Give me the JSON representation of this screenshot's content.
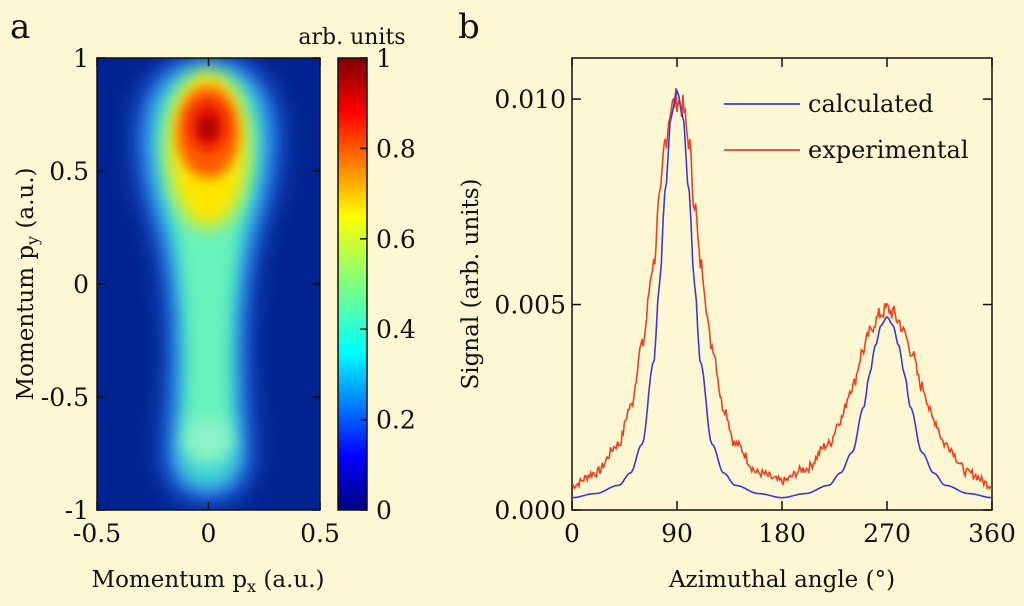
{
  "chart_data": [
    {
      "panel": "a",
      "type": "heatmap",
      "xlabel_main": "Momentum p",
      "xlabel_sub": "x",
      "xlabel_unit": " (a.u.)",
      "ylabel_main": "Momentum p",
      "ylabel_sub": "y",
      "ylabel_unit": " (a.u.)",
      "xlim": [
        -0.5,
        0.5
      ],
      "ylim": [
        -1,
        1
      ],
      "x_ticks": [
        "-0.5",
        "0",
        "0.5"
      ],
      "x_tick_values": [
        -0.5,
        0,
        0.5
      ],
      "y_ticks": [
        "1",
        "0.5",
        "0",
        "-0.5",
        "-1"
      ],
      "y_tick_values": [
        1,
        0.5,
        0,
        -0.5,
        -1
      ],
      "colorbar": {
        "title": "arb. units",
        "ticks": [
          "1",
          "0.8",
          "0.6",
          "0.4",
          "0.2",
          "0"
        ],
        "tick_values": [
          1,
          0.8,
          0.6,
          0.4,
          0.2,
          0
        ],
        "range": [
          0,
          1
        ]
      },
      "intensity_profile": {
        "peak_center": [
          0,
          0.7
        ],
        "peak_value": 1.0,
        "tail_center": [
          0,
          -0.72
        ],
        "tail_value": 0.35
      }
    },
    {
      "panel": "b",
      "type": "line",
      "xlabel": "Azimuthal angle (°)",
      "ylabel": "Signal (arb. units)",
      "xlim": [
        0,
        360
      ],
      "ylim": [
        0,
        0.011
      ],
      "x_ticks": [
        "0",
        "90",
        "180",
        "270",
        "360"
      ],
      "x_tick_values": [
        0,
        90,
        180,
        270,
        360
      ],
      "y_ticks": [
        "0.010",
        "0.005",
        "0.000"
      ],
      "y_tick_values": [
        0.01,
        0.005,
        0.0
      ],
      "legend_position": "top-right",
      "series": [
        {
          "name": "calculated",
          "color": "#3a3ad6",
          "x": [
            0,
            20,
            40,
            50,
            60,
            70,
            75,
            80,
            85,
            90,
            95,
            100,
            105,
            110,
            120,
            130,
            140,
            160,
            180,
            200,
            220,
            230,
            240,
            250,
            255,
            260,
            265,
            270,
            275,
            280,
            285,
            290,
            300,
            310,
            320,
            340,
            360
          ],
          "values": [
            0.0003,
            0.0004,
            0.0006,
            0.0009,
            0.0016,
            0.0036,
            0.0055,
            0.0078,
            0.0096,
            0.0102,
            0.0096,
            0.0078,
            0.0055,
            0.0036,
            0.0016,
            0.0009,
            0.0006,
            0.0004,
            0.0003,
            0.0004,
            0.0006,
            0.0009,
            0.0014,
            0.0025,
            0.0033,
            0.004,
            0.0045,
            0.0047,
            0.0045,
            0.004,
            0.0033,
            0.0025,
            0.0014,
            0.0009,
            0.0006,
            0.0004,
            0.0003
          ]
        },
        {
          "name": "experimental",
          "color": "#f0401f",
          "x": [
            0,
            20,
            40,
            50,
            60,
            70,
            75,
            80,
            85,
            90,
            95,
            100,
            105,
            110,
            120,
            130,
            140,
            160,
            180,
            200,
            220,
            230,
            240,
            250,
            255,
            260,
            265,
            270,
            275,
            280,
            285,
            290,
            300,
            310,
            320,
            340,
            360
          ],
          "values": [
            0.0006,
            0.0009,
            0.0016,
            0.0025,
            0.004,
            0.006,
            0.0075,
            0.009,
            0.0098,
            0.01,
            0.0098,
            0.009,
            0.0075,
            0.006,
            0.004,
            0.0025,
            0.0016,
            0.0009,
            0.0007,
            0.001,
            0.0016,
            0.0022,
            0.003,
            0.0039,
            0.0043,
            0.0046,
            0.0048,
            0.0049,
            0.0048,
            0.0046,
            0.0043,
            0.0039,
            0.003,
            0.0022,
            0.0016,
            0.0009,
            0.0006
          ]
        }
      ]
    }
  ]
}
